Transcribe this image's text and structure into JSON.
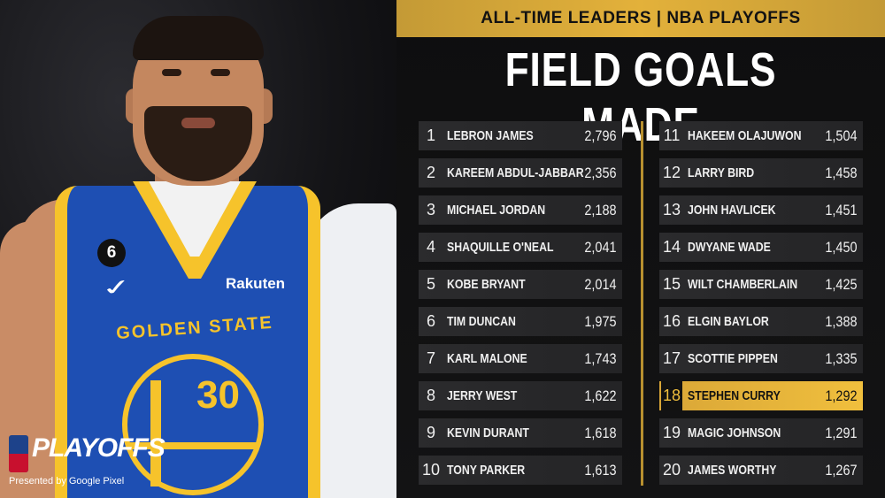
{
  "graphic": {
    "banner": "ALL-TIME LEADERS | NBA PLAYOFFS",
    "title": "FIELD GOALS MADE",
    "accent_color": "#e3b13a",
    "highlight_rank": 18
  },
  "photo": {
    "jersey_team_text": "GOLDEN STATE",
    "jersey_number": "30",
    "patch_number": "6",
    "sponsor": "Rakuten",
    "brand_mark": "nike-swoosh-icon"
  },
  "logo": {
    "playoffs": "PLAYOFFS",
    "presented_by": "Presented by Google Pixel"
  },
  "leaders": [
    {
      "rank": "1",
      "name": "LEBRON JAMES",
      "value": "2,796"
    },
    {
      "rank": "2",
      "name": "KAREEM ABDUL-JABBAR",
      "value": "2,356"
    },
    {
      "rank": "3",
      "name": "MICHAEL JORDAN",
      "value": "2,188"
    },
    {
      "rank": "4",
      "name": "SHAQUILLE O'NEAL",
      "value": "2,041"
    },
    {
      "rank": "5",
      "name": "KOBE BRYANT",
      "value": "2,014"
    },
    {
      "rank": "6",
      "name": "TIM DUNCAN",
      "value": "1,975"
    },
    {
      "rank": "7",
      "name": "KARL MALONE",
      "value": "1,743"
    },
    {
      "rank": "8",
      "name": "JERRY WEST",
      "value": "1,622"
    },
    {
      "rank": "9",
      "name": "KEVIN DURANT",
      "value": "1,618"
    },
    {
      "rank": "10",
      "name": "TONY PARKER",
      "value": "1,613"
    },
    {
      "rank": "11",
      "name": "HAKEEM OLAJUWON",
      "value": "1,504"
    },
    {
      "rank": "12",
      "name": "LARRY BIRD",
      "value": "1,458"
    },
    {
      "rank": "13",
      "name": "JOHN HAVLICEK",
      "value": "1,451"
    },
    {
      "rank": "14",
      "name": "DWYANE WADE",
      "value": "1,450"
    },
    {
      "rank": "15",
      "name": "WILT CHAMBERLAIN",
      "value": "1,425"
    },
    {
      "rank": "16",
      "name": "ELGIN BAYLOR",
      "value": "1,388"
    },
    {
      "rank": "17",
      "name": "SCOTTIE PIPPEN",
      "value": "1,335"
    },
    {
      "rank": "18",
      "name": "STEPHEN CURRY",
      "value": "1,292"
    },
    {
      "rank": "19",
      "name": "MAGIC JOHNSON",
      "value": "1,291"
    },
    {
      "rank": "20",
      "name": "JAMES WORTHY",
      "value": "1,267"
    }
  ]
}
